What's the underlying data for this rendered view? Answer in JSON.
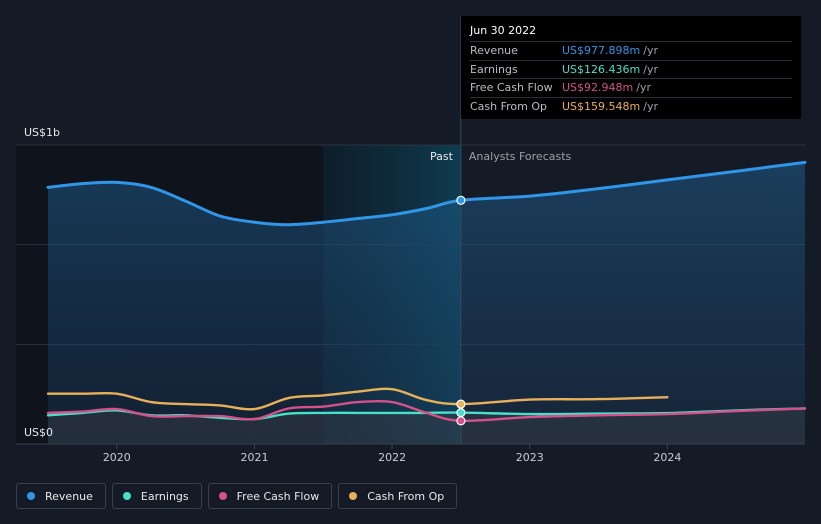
{
  "chart_data": {
    "type": "line",
    "y_top_label": "US$1b",
    "y_bottom_label": "US$0",
    "ylim": [
      0,
      1200
    ],
    "xlim": [
      2019.5,
      2025
    ],
    "x_ticks": [
      "2020",
      "2021",
      "2022",
      "2023",
      "2024"
    ],
    "region_labels": {
      "past": "Past",
      "forecast": "Analysts Forecasts"
    },
    "divider_x": 2022.5,
    "shade_start_x": 2021.5,
    "series": [
      {
        "name": "Revenue",
        "color": "#2f96e8",
        "fill": true,
        "x": [
          2019.5,
          2019.75,
          2020.0,
          2020.25,
          2020.5,
          2020.75,
          2021.0,
          2021.25,
          2021.5,
          2021.75,
          2022.0,
          2022.25,
          2022.5,
          2023.0,
          2023.5,
          2024.0,
          2024.5,
          2025.0
        ],
        "values": [
          1030,
          1045,
          1050,
          1030,
          975,
          915,
          890,
          880,
          890,
          905,
          920,
          945,
          978,
          995,
          1025,
          1060,
          1095,
          1130
        ]
      },
      {
        "name": "Earnings",
        "color": "#48e0c8",
        "fill": false,
        "x": [
          2019.5,
          2019.75,
          2020.0,
          2020.25,
          2020.5,
          2020.75,
          2021.0,
          2021.25,
          2021.5,
          2021.75,
          2022.0,
          2022.25,
          2022.5,
          2023.0,
          2023.5,
          2024.0,
          2024.5,
          2025.0
        ],
        "values": [
          115,
          125,
          135,
          115,
          115,
          105,
          100,
          122,
          125,
          125,
          125,
          125,
          126,
          120,
          122,
          124,
          135,
          143
        ]
      },
      {
        "name": "Free Cash Flow",
        "color": "#d6508a",
        "fill": false,
        "x": [
          2019.5,
          2019.75,
          2020.0,
          2020.25,
          2020.5,
          2020.75,
          2021.0,
          2021.25,
          2021.5,
          2021.75,
          2022.0,
          2022.25,
          2022.5,
          2023.0,
          2023.5,
          2024.0,
          2024.5,
          2025.0
        ],
        "values": [
          125,
          130,
          140,
          112,
          112,
          112,
          100,
          143,
          150,
          168,
          168,
          125,
          93,
          108,
          115,
          120,
          132,
          143
        ]
      },
      {
        "name": "Cash From Op",
        "color": "#e8b05a",
        "fill": false,
        "x": [
          2019.5,
          2019.75,
          2020.0,
          2020.25,
          2020.5,
          2020.75,
          2021.0,
          2021.25,
          2021.5,
          2021.75,
          2022.0,
          2022.25,
          2022.5,
          2023.0,
          2023.5,
          2024.0
        ],
        "values": [
          202,
          202,
          202,
          168,
          160,
          155,
          140,
          185,
          195,
          210,
          220,
          176,
          160,
          178,
          180,
          188
        ]
      }
    ]
  },
  "tooltip": {
    "date": "Jun 30 2022",
    "rows": [
      {
        "label": "Revenue",
        "value": "US$977.898m",
        "unit": "/yr",
        "color": "#2f96e8"
      },
      {
        "label": "Earnings",
        "value": "US$126.436m",
        "unit": "/yr",
        "color": "#48e0c8"
      },
      {
        "label": "Free Cash Flow",
        "value": "US$92.948m",
        "unit": "/yr",
        "color": "#d6508a"
      },
      {
        "label": "Cash From Op",
        "value": "US$159.548m",
        "unit": "/yr",
        "color": "#e8b05a"
      }
    ]
  },
  "legend": [
    {
      "label": "Revenue",
      "color": "#2f96e8"
    },
    {
      "label": "Earnings",
      "color": "#48e0c8"
    },
    {
      "label": "Free Cash Flow",
      "color": "#d6508a"
    },
    {
      "label": "Cash From Op",
      "color": "#e8b05a"
    }
  ]
}
